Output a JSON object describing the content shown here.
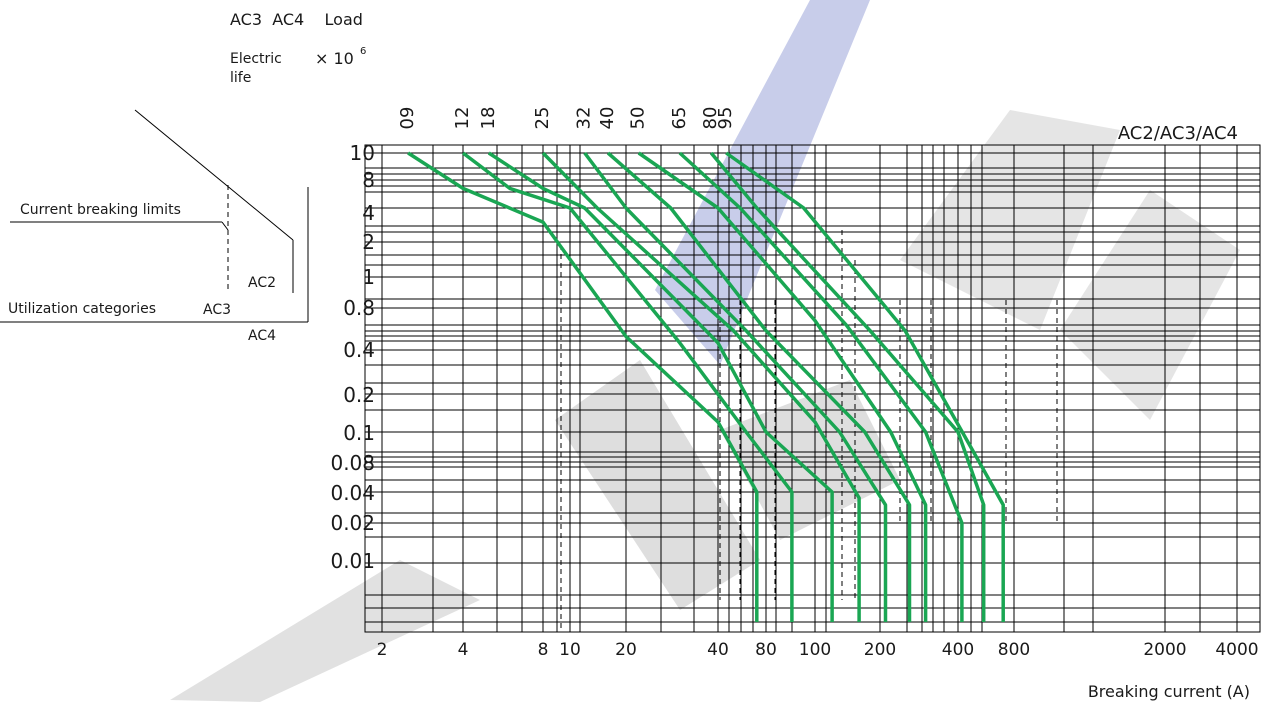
{
  "header": {
    "load_categories": "AC3  AC4    Load",
    "electric_life_line1": "Electric",
    "electric_life_line2": "life",
    "multiplier": "× 10",
    "multiplier_exp": "6"
  },
  "legend_diagram": {
    "current_breaking_limits": "Current breaking limits",
    "utilization_categories": "Utilization categories",
    "ac2": "AC2",
    "ac3": "AC3",
    "ac4": "AC4"
  },
  "colors": {
    "curve": "#1aa653",
    "grid": "#000000",
    "watermark": "#c8cdea"
  },
  "chart_data": {
    "type": "line",
    "title": "AC2/AC3/AC4",
    "xlabel": "Breaking current (A)",
    "ylabel": "Electric life × 10^6",
    "x_scale": "log",
    "y_scale": "log",
    "x_tick_labels": [
      "2",
      "4",
      "8",
      "10",
      "20",
      "40",
      "80",
      "100",
      "200",
      "400",
      "800",
      "2000",
      "4000"
    ],
    "y_tick_labels": [
      "10",
      "8",
      "4",
      "2",
      "1",
      "0.8",
      "0.4",
      "0.2",
      "0.1",
      "0.08",
      "0.04",
      "0.02",
      "0.01"
    ],
    "grid": true,
    "series": [
      {
        "name": "09",
        "points": [
          [
            2.5,
            10
          ],
          [
            4,
            6.5
          ],
          [
            8,
            3
          ],
          [
            20,
            0.5
          ],
          [
            40,
            0.12
          ],
          [
            70,
            0.04
          ],
          [
            70,
            0.002
          ]
        ]
      },
      {
        "name": "12",
        "points": [
          [
            4,
            10
          ],
          [
            6,
            6.5
          ],
          [
            10,
            4
          ],
          [
            30,
            0.45
          ],
          [
            60,
            0.1
          ],
          [
            90,
            0.04
          ],
          [
            90,
            0.002
          ]
        ]
      },
      {
        "name": "18",
        "points": [
          [
            5,
            10
          ],
          [
            8,
            6.5
          ],
          [
            12,
            4
          ],
          [
            40,
            0.45
          ],
          [
            80,
            0.1
          ],
          [
            120,
            0.04
          ],
          [
            120,
            0.002
          ]
        ]
      },
      {
        "name": "25",
        "points": [
          [
            8,
            10
          ],
          [
            14,
            4
          ],
          [
            50,
            0.55
          ],
          [
            100,
            0.12
          ],
          [
            160,
            0.035
          ],
          [
            160,
            0.002
          ]
        ]
      },
      {
        "name": "32",
        "points": [
          [
            12,
            10
          ],
          [
            20,
            4
          ],
          [
            60,
            0.55
          ],
          [
            130,
            0.1
          ],
          [
            210,
            0.03
          ],
          [
            210,
            0.002
          ]
        ]
      },
      {
        "name": "40",
        "points": [
          [
            16,
            10
          ],
          [
            28,
            4
          ],
          [
            80,
            0.55
          ],
          [
            170,
            0.1
          ],
          [
            260,
            0.03
          ],
          [
            260,
            0.002
          ]
        ]
      },
      {
        "name": "50",
        "points": [
          [
            22,
            10
          ],
          [
            40,
            4
          ],
          [
            100,
            0.65
          ],
          [
            220,
            0.1
          ],
          [
            300,
            0.03
          ],
          [
            300,
            0.002
          ]
        ]
      },
      {
        "name": "65",
        "points": [
          [
            30,
            10
          ],
          [
            55,
            4
          ],
          [
            140,
            0.6
          ],
          [
            300,
            0.1
          ],
          [
            420,
            0.02
          ],
          [
            420,
            0.002
          ]
        ]
      },
      {
        "name": "80",
        "points": [
          [
            38,
            10
          ],
          [
            70,
            4
          ],
          [
            180,
            0.55
          ],
          [
            400,
            0.1
          ],
          [
            550,
            0.03
          ],
          [
            550,
            0.002
          ]
        ]
      },
      {
        "name": "95",
        "points": [
          [
            45,
            10
          ],
          [
            95,
            4
          ],
          [
            250,
            0.55
          ],
          [
            520,
            0.08
          ],
          [
            700,
            0.03
          ],
          [
            700,
            0.002
          ]
        ]
      }
    ]
  }
}
